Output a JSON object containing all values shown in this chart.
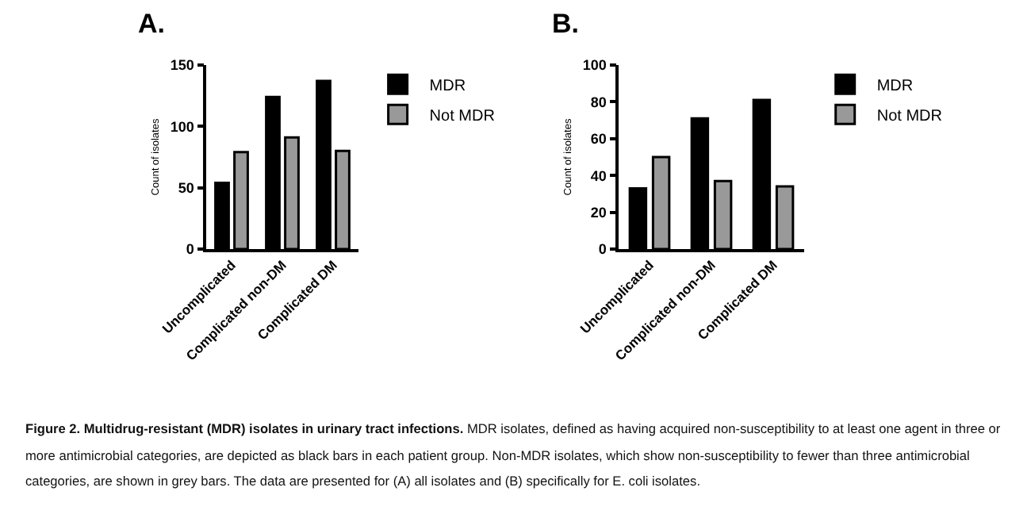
{
  "chart_data": [
    {
      "type": "bar",
      "title": "A.",
      "ylabel": "Count of isolates",
      "categories": [
        "Uncomplicated",
        "Complicated non-DM",
        "Complicated DM"
      ],
      "series": [
        {
          "name": "MDR",
          "color": "#000000",
          "values": [
            54,
            124,
            137
          ]
        },
        {
          "name": "Not MDR",
          "color": "#999999",
          "values": [
            79,
            91,
            80
          ]
        }
      ],
      "ylim": [
        0,
        150
      ],
      "yticks": [
        0,
        50,
        100,
        150
      ],
      "grid": false,
      "legend": "top right",
      "annotations": [
        "Figure 2. Multidrug-resistant (MDR) isolates in urinary tract infections.",
        "MDR isolates, defined as having acquired non-susceptibility to at least one agent in three or more antimicrobial categories, are depicted as black bars in each patient group. Non-MDR isolates, which show non-susceptibility to fewer than three antimicrobial categories, are shown in grey bars. The data are presented for (A) all isolates and (B) specifically for E. coli isolates."
      ]
    },
    {
      "type": "bar",
      "title": "B.",
      "ylabel": "Count of isolates",
      "categories": [
        "Uncomplicated",
        "Complicated non-DM",
        "Complicated DM"
      ],
      "series": [
        {
          "name": "MDR",
          "color": "#000000",
          "values": [
            33,
            71,
            81
          ]
        },
        {
          "name": "Not MDR",
          "color": "#999999",
          "values": [
            50,
            37,
            34
          ]
        }
      ],
      "ylim": [
        0,
        100
      ],
      "yticks": [
        0,
        20,
        40,
        60,
        80,
        100
      ],
      "grid": false,
      "legend": "top right"
    }
  ]
}
